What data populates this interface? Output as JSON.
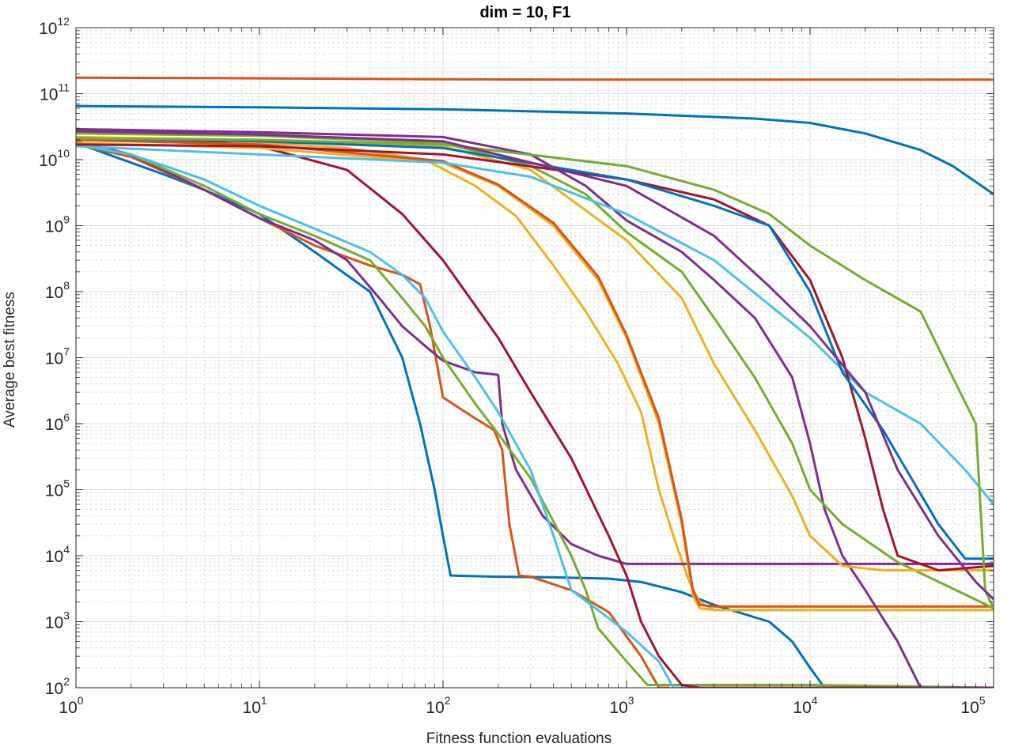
{
  "chart_data": {
    "type": "line",
    "title": "dim = 10,  F1",
    "xlabel": "Fitness function evaluations",
    "ylabel": "Average best fitness",
    "xscale": "log",
    "yscale": "log",
    "xlim": [
      1,
      100000
    ],
    "ylim": [
      100,
      1000000000000
    ],
    "grid": true,
    "minor_grid": true,
    "x_ticks": [
      {
        "base": "10",
        "exp": "0",
        "value": 1
      },
      {
        "base": "10",
        "exp": "1",
        "value": 10
      },
      {
        "base": "10",
        "exp": "2",
        "value": 100
      },
      {
        "base": "10",
        "exp": "3",
        "value": 1000
      },
      {
        "base": "10",
        "exp": "4",
        "value": 10000
      },
      {
        "base": "10",
        "exp": "5",
        "value": 100000
      }
    ],
    "y_ticks": [
      {
        "base": "10",
        "exp": "2",
        "value": 100
      },
      {
        "base": "10",
        "exp": "3",
        "value": 1000
      },
      {
        "base": "10",
        "exp": "4",
        "value": 10000
      },
      {
        "base": "10",
        "exp": "5",
        "value": 100000
      },
      {
        "base": "10",
        "exp": "6",
        "value": 1000000
      },
      {
        "base": "10",
        "exp": "7",
        "value": 10000000
      },
      {
        "base": "10",
        "exp": "8",
        "value": 100000000
      },
      {
        "base": "10",
        "exp": "9",
        "value": 1000000000
      },
      {
        "base": "10",
        "exp": "10",
        "value": 10000000000
      },
      {
        "base": "10",
        "exp": "11",
        "value": 100000000000
      },
      {
        "base": "10",
        "exp": "12",
        "value": 1000000000000
      }
    ],
    "series": [
      {
        "color": "#0072BD",
        "x": [
          1,
          2,
          3,
          5,
          10,
          20,
          40,
          60,
          75,
          90,
          100,
          110,
          200,
          400,
          800,
          1200,
          2000,
          3000,
          6000,
          8000,
          10000,
          12000
        ],
        "y": [
          18000000000,
          9000000000,
          6000000000,
          3500000000,
          1500000000,
          400000000,
          100000000,
          10000000,
          1000000,
          100000,
          20000,
          5000,
          4800,
          4700,
          4500,
          4000,
          2800,
          1800,
          1000,
          500,
          200,
          100
        ]
      },
      {
        "color": "#D95319",
        "x": [
          1,
          2,
          5,
          10,
          20,
          40,
          60,
          75,
          85,
          100,
          150,
          190,
          210,
          230,
          260,
          300,
          500,
          800,
          1200,
          1500,
          1700
        ],
        "y": [
          17000000000,
          11000000000,
          3500000000,
          1300000000,
          500000000,
          250000000,
          180000000,
          130000000,
          30000000,
          2500000,
          1200000,
          800000,
          400000,
          30000,
          5000,
          4800,
          3000,
          1400,
          300,
          100,
          100
        ]
      },
      {
        "color": "#EDB120",
        "x": [
          1,
          3,
          10,
          30,
          80,
          150,
          250,
          400,
          600,
          900,
          1200,
          1500,
          1800,
          2200,
          2500,
          3000,
          5000,
          10000,
          30000,
          100000
        ],
        "y": [
          21000000000,
          20000000000,
          18000000000,
          15000000000,
          10000000000,
          4000000000,
          1400000000,
          250000000,
          50000000,
          8000000,
          1500000,
          100000,
          20000,
          4000,
          2000,
          1500,
          1500,
          1500,
          1500,
          1500
        ]
      },
      {
        "color": "#7E2F8E",
        "x": [
          1,
          2,
          5,
          10,
          20,
          30,
          45,
          60,
          80,
          100,
          150,
          200,
          210,
          250,
          350,
          500,
          700,
          1000,
          3000,
          10000,
          100000
        ],
        "y": [
          19000000000,
          12000000000,
          3500000000,
          1300000000,
          600000000,
          300000000,
          80000000,
          30000000,
          15000000,
          9000000,
          6000000,
          5500000,
          1000000,
          200000,
          40000,
          15000,
          10000,
          7500,
          7500,
          7500,
          7500
        ]
      },
      {
        "color": "#77AC30",
        "x": [
          1,
          2,
          5,
          10,
          20,
          40,
          60,
          80,
          100,
          150,
          200,
          300,
          500,
          600,
          700,
          1000,
          1300,
          3000,
          10000,
          100000
        ],
        "y": [
          17000000000,
          12000000000,
          4000000000,
          1500000000,
          700000000,
          300000000,
          80000000,
          30000000,
          10000000,
          2000000,
          700000,
          150000,
          10000,
          3000,
          800,
          250,
          110,
          110,
          110,
          100
        ]
      },
      {
        "color": "#4DBEEE",
        "x": [
          1,
          2,
          5,
          10,
          20,
          40,
          60,
          80,
          100,
          150,
          200,
          300,
          400,
          500,
          700,
          1000,
          1500,
          1800,
          10000,
          100000
        ],
        "y": [
          17000000000,
          12000000000,
          5000000000,
          2000000000,
          900000000,
          400000000,
          180000000,
          80000000,
          25000000,
          5000000,
          1500000,
          200000,
          20000,
          3000,
          1500,
          700,
          250,
          100,
          100,
          100
        ]
      },
      {
        "color": "#A2142F",
        "x": [
          1,
          5,
          10,
          30,
          60,
          100,
          200,
          300,
          500,
          800,
          1000,
          1200,
          1500,
          2000,
          2500,
          10000,
          100000
        ],
        "y": [
          20000000000,
          19000000000,
          16000000000,
          7000000000,
          1500000000,
          300000000,
          20000000,
          3000000,
          300000,
          20000,
          5000,
          1000,
          300,
          110,
          100,
          100,
          100
        ]
      },
      {
        "color": "#0072BD",
        "x": [
          1,
          10,
          100,
          1000,
          5000,
          10000,
          20000,
          40000,
          60000,
          100000
        ],
        "y": [
          65000000000,
          62000000000,
          58000000000,
          50000000000,
          42000000000,
          36000000000,
          25000000000,
          14000000000,
          8000000000,
          3000000000
        ]
      },
      {
        "color": "#D95319",
        "x": [
          1,
          5,
          30,
          100,
          1000,
          10000,
          100000
        ],
        "y": [
          175000000000,
          172000000000,
          168000000000,
          165000000000,
          163000000000,
          163000000000,
          163000000000
        ]
      },
      {
        "color": "#EDB120",
        "x": [
          1,
          10,
          100,
          200,
          400,
          700,
          1000,
          1500,
          2000,
          2300,
          2500,
          3000,
          10000,
          100000
        ],
        "y": [
          18000000000,
          15000000000,
          9000000000,
          4000000000,
          1000000000,
          150000000,
          20000000,
          1000000,
          30000,
          2500,
          1600,
          1500,
          1500,
          1500
        ]
      },
      {
        "color": "#D95319",
        "x": [
          1,
          10,
          100,
          200,
          400,
          700,
          1000,
          1500,
          2000,
          2300,
          2500,
          3000,
          10000,
          100000
        ],
        "y": [
          20000000000,
          17000000000,
          9500000000,
          4200000000,
          1100000000,
          170000000,
          22000000,
          1200000,
          35000,
          3000,
          1800,
          1700,
          1700,
          1700
        ]
      },
      {
        "color": "#7E2F8E",
        "x": [
          1,
          10,
          100,
          300,
          600,
          1000,
          2000,
          3000,
          5000,
          8000,
          10000,
          12000,
          15000,
          20000,
          30000,
          40000,
          100000
        ],
        "y": [
          29000000000,
          26000000000,
          22000000000,
          12000000000,
          4000000000,
          1200000000,
          400000000,
          150000000,
          40000000,
          5000000,
          500000,
          50000,
          10000,
          3000,
          500,
          100,
          100
        ]
      },
      {
        "color": "#77AC30",
        "x": [
          1,
          10,
          100,
          300,
          600,
          1000,
          2000,
          3000,
          5000,
          8000,
          10000,
          15000,
          30000,
          100000
        ],
        "y": [
          25000000000,
          23000000000,
          18000000000,
          8000000000,
          3000000000,
          800000000,
          200000000,
          40000000,
          5000000,
          500000,
          100000,
          30000,
          8000,
          1600
        ]
      },
      {
        "color": "#EDB120",
        "x": [
          1,
          10,
          100,
          300,
          600,
          1000,
          2000,
          3000,
          5000,
          8000,
          10000,
          15000,
          25000,
          30000,
          100000
        ],
        "y": [
          22000000000,
          20000000000,
          16000000000,
          7000000000,
          1700000000,
          600000000,
          80000000,
          8000000,
          800000,
          80000,
          20000,
          7000,
          6000,
          6000,
          6000
        ]
      },
      {
        "color": "#4DBEEE",
        "x": [
          1,
          10,
          100,
          300,
          1000,
          3000,
          10000,
          20000,
          40000,
          70000,
          100000
        ],
        "y": [
          16000000000,
          12000000000,
          9000000000,
          5500000000,
          1500000000,
          300000000,
          20000000,
          3000000,
          1000000,
          200000,
          60000
        ]
      },
      {
        "color": "#A2142F",
        "x": [
          1,
          10,
          100,
          1000,
          3000,
          6000,
          10000,
          15000,
          20000,
          25000,
          30000,
          50000,
          100000
        ],
        "y": [
          17000000000,
          16000000000,
          12000000000,
          5000000000,
          2500000000,
          1000000000,
          150000000,
          10000000,
          600000,
          50000,
          10000,
          6000,
          7000
        ]
      },
      {
        "color": "#0072BD",
        "x": [
          1,
          10,
          100,
          1000,
          3000,
          6000,
          10000,
          15000,
          25000,
          50000,
          70000,
          100000
        ],
        "y": [
          21000000000,
          19000000000,
          15000000000,
          5000000000,
          2000000000,
          1000000000,
          100000000,
          6000000,
          800000,
          30000,
          9000,
          9000
        ]
      },
      {
        "color": "#77AC30",
        "x": [
          1,
          10,
          100,
          1000,
          3000,
          6000,
          10000,
          20000,
          40000,
          60000,
          80000,
          85000,
          90000,
          100000
        ],
        "y": [
          21000000000,
          20000000000,
          17000000000,
          8000000000,
          3500000000,
          1500000000,
          500000000,
          150000000,
          50000000,
          5000000,
          1000000,
          50000,
          3000,
          1600
        ]
      },
      {
        "color": "#7E2F8E",
        "x": [
          1,
          10,
          100,
          1000,
          3000,
          6000,
          10000,
          20000,
          30000,
          50000,
          80000,
          100000
        ],
        "y": [
          27000000000,
          24000000000,
          19000000000,
          4000000000,
          700000000,
          120000000,
          30000000,
          3000000,
          200000,
          20000,
          4000,
          2200
        ]
      }
    ]
  }
}
